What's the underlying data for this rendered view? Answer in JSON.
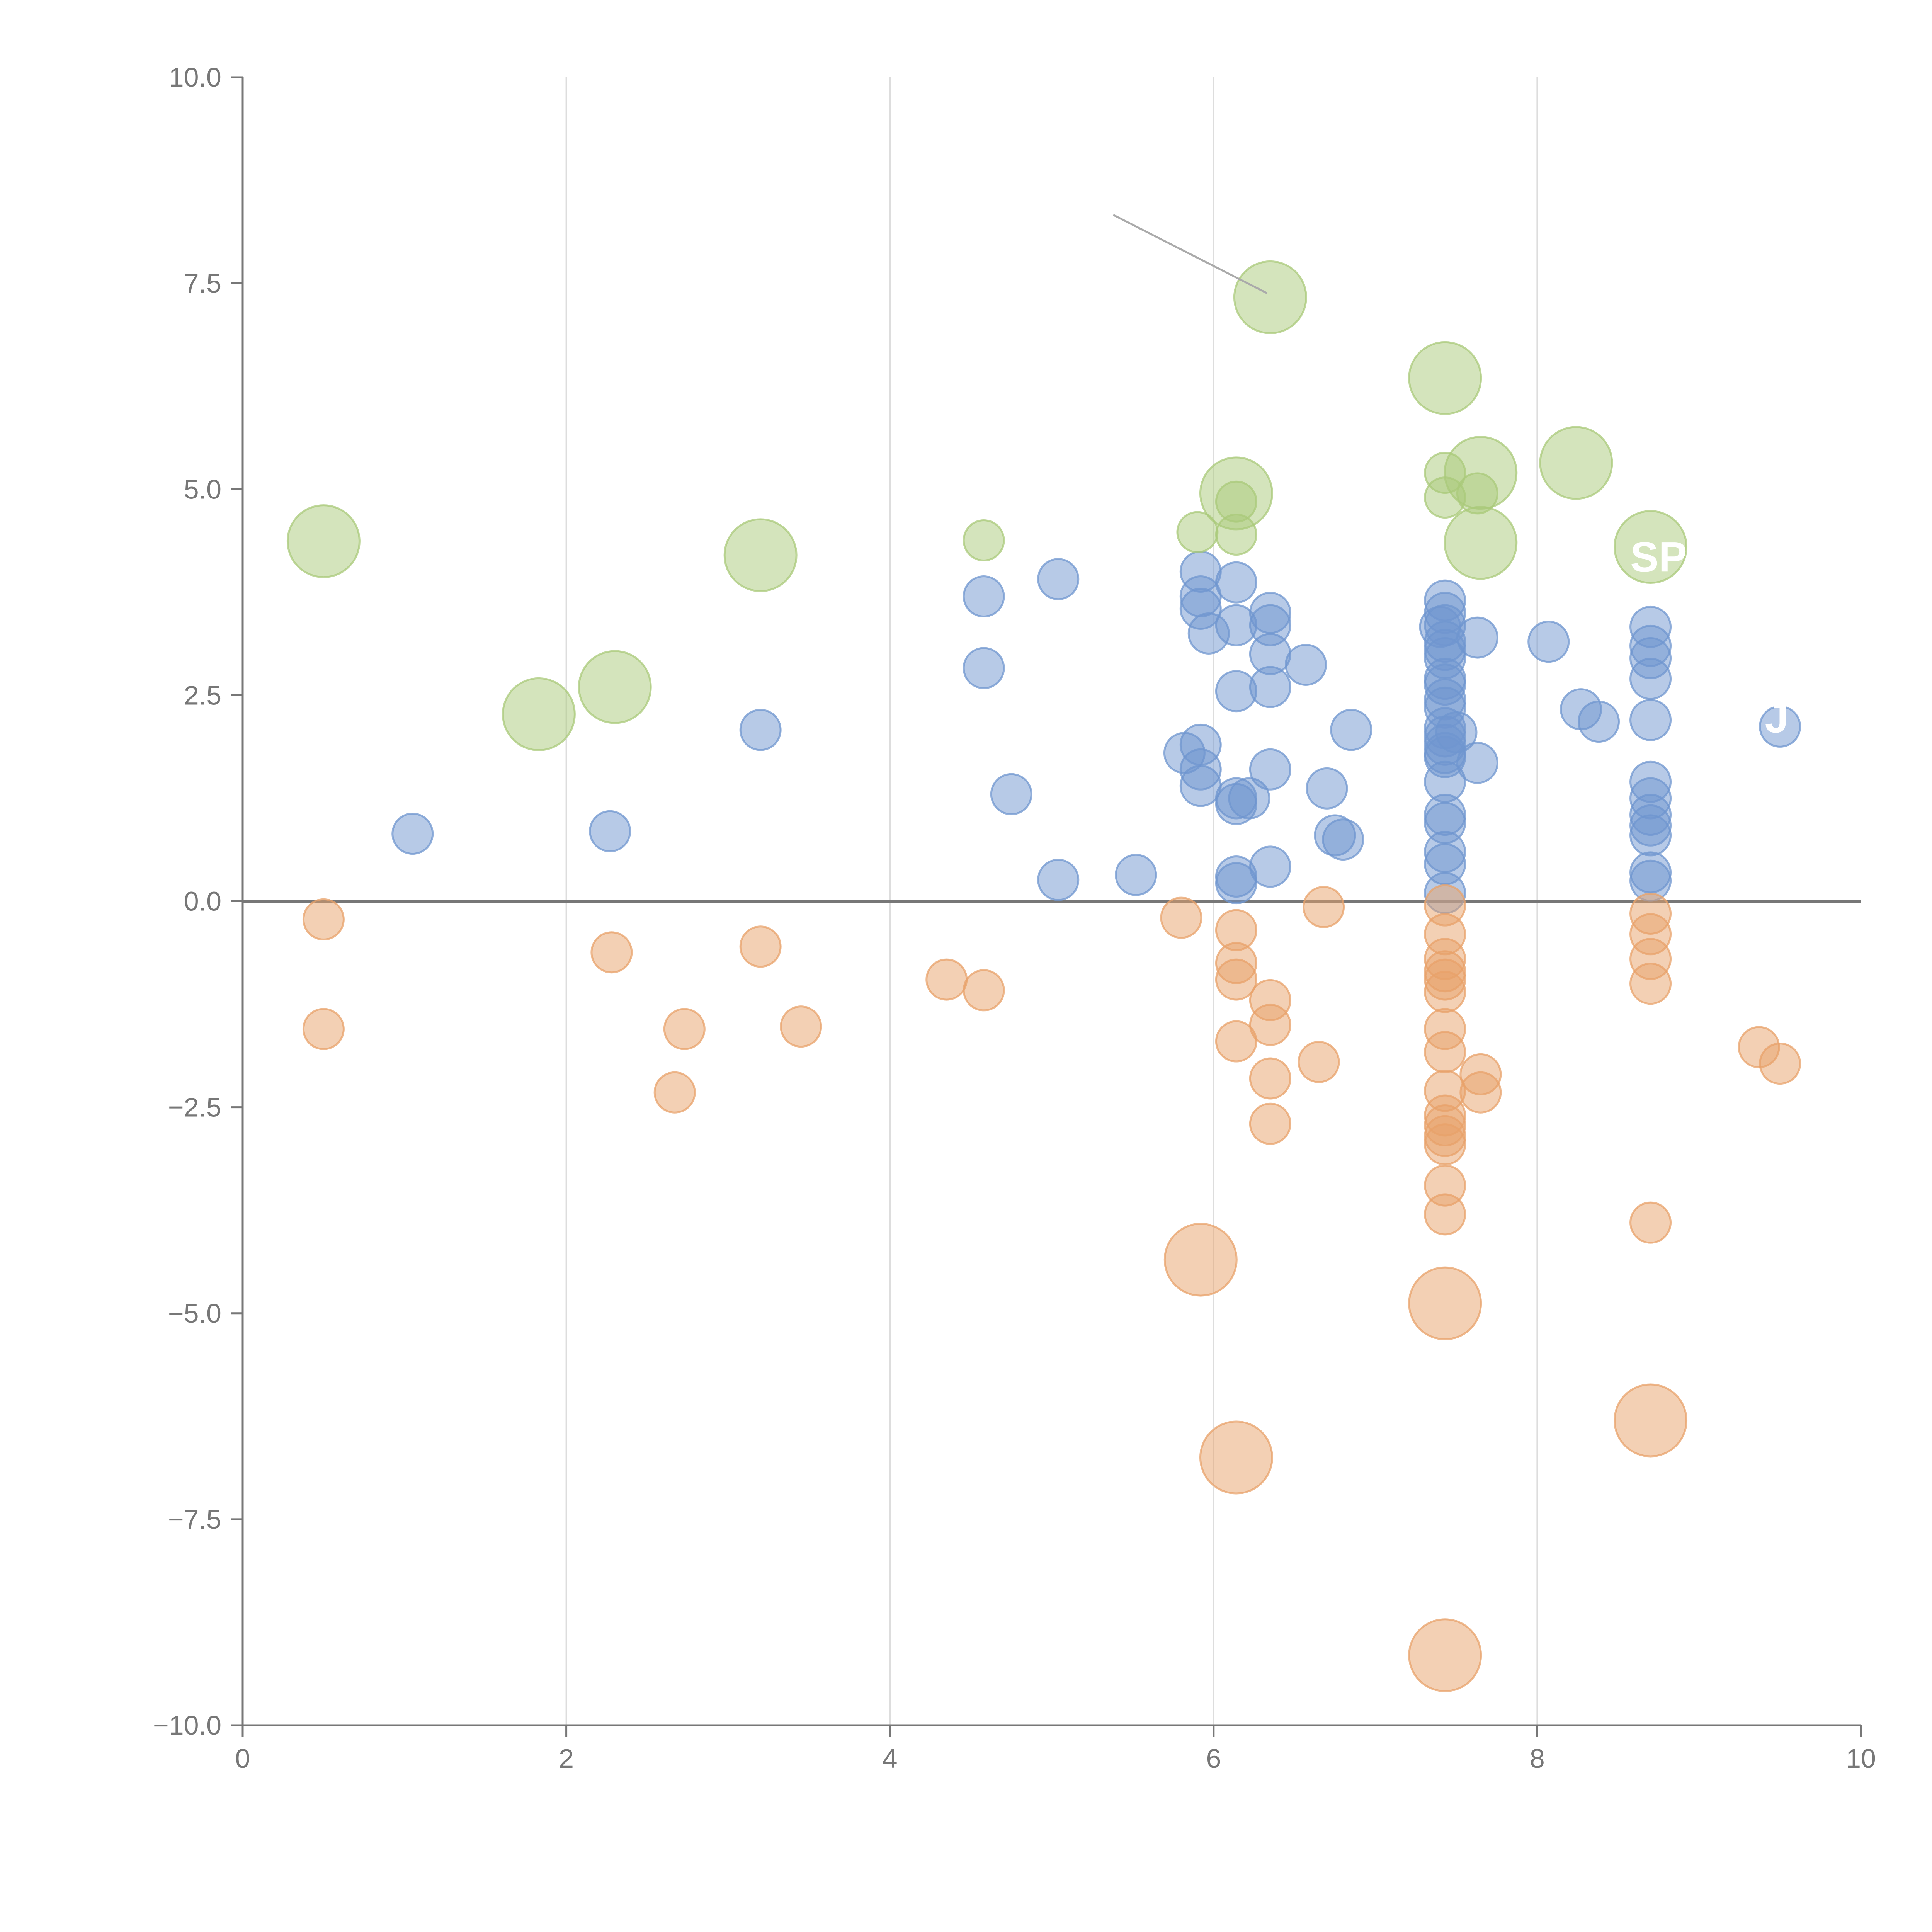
{
  "chart_data": {
    "type": "scatter",
    "title": "",
    "xlabel": "",
    "ylabel": "",
    "xlim": [
      0,
      10
    ],
    "ylim": [
      -10,
      10
    ],
    "grid": "vertical",
    "x_ticks": [
      0,
      2,
      4,
      6,
      8,
      10
    ],
    "x_tick_labels": [
      "0",
      "2",
      "4",
      "6",
      "8",
      "10"
    ],
    "y_ticks": [
      10,
      7.5,
      5,
      2.5,
      0,
      -2.5,
      -5,
      -7.5,
      -10
    ],
    "y_tick_labels": [
      "10.0",
      "7.5",
      "5.0",
      "2.5",
      "0.0",
      "−2.5",
      "−5.0",
      "−7.5",
      "−10.0"
    ],
    "zero_line": 0,
    "colors": {
      "positive": "#6f95cf",
      "negative": "#e8a26a",
      "highlight": "#a9c97a",
      "axis": "#777777",
      "grid": "#dddddd",
      "zero_line": "#777777"
    },
    "series": [
      {
        "name": "positive",
        "color": "#6f95cf",
        "size": "small",
        "points": [
          [
            1.05,
            0.82
          ],
          [
            2.27,
            0.85
          ],
          [
            3.2,
            2.08
          ],
          [
            4.58,
            3.7
          ],
          [
            4.58,
            2.83
          ],
          [
            4.75,
            1.3
          ],
          [
            5.04,
            3.91
          ],
          [
            5.04,
            0.26
          ],
          [
            5.52,
            0.32
          ],
          [
            5.82,
            1.8
          ],
          [
            5.92,
            4.0
          ],
          [
            5.92,
            3.7
          ],
          [
            5.92,
            3.55
          ],
          [
            5.92,
            1.9
          ],
          [
            5.92,
            1.6
          ],
          [
            5.92,
            1.4
          ],
          [
            5.97,
            3.25
          ],
          [
            6.14,
            3.87
          ],
          [
            6.14,
            3.35
          ],
          [
            6.14,
            2.55
          ],
          [
            6.14,
            1.25
          ],
          [
            6.14,
            1.18
          ],
          [
            6.14,
            0.3
          ],
          [
            6.14,
            0.22
          ],
          [
            6.22,
            1.25
          ],
          [
            6.35,
            3.5
          ],
          [
            6.35,
            3.35
          ],
          [
            6.35,
            3.0
          ],
          [
            6.35,
            2.6
          ],
          [
            6.35,
            1.6
          ],
          [
            6.35,
            0.42
          ],
          [
            6.57,
            2.87
          ],
          [
            6.7,
            1.37
          ],
          [
            6.75,
            0.8
          ],
          [
            6.8,
            0.75
          ],
          [
            6.85,
            2.08
          ],
          [
            7.4,
            3.33
          ],
          [
            7.43,
            3.65
          ],
          [
            7.43,
            3.5
          ],
          [
            7.43,
            3.35
          ],
          [
            7.43,
            3.15
          ],
          [
            7.43,
            3.05
          ],
          [
            7.43,
            2.95
          ],
          [
            7.43,
            2.7
          ],
          [
            7.43,
            2.63
          ],
          [
            7.43,
            2.45
          ],
          [
            7.43,
            2.35
          ],
          [
            7.43,
            2.1
          ],
          [
            7.43,
            2.0
          ],
          [
            7.43,
            1.9
          ],
          [
            7.43,
            1.8
          ],
          [
            7.43,
            1.75
          ],
          [
            7.43,
            1.45
          ],
          [
            7.43,
            1.05
          ],
          [
            7.43,
            0.95
          ],
          [
            7.43,
            0.6
          ],
          [
            7.43,
            0.45
          ],
          [
            7.43,
            0.1
          ],
          [
            7.5,
            2.05
          ],
          [
            7.63,
            3.2
          ],
          [
            7.63,
            1.68
          ],
          [
            8.07,
            3.15
          ],
          [
            8.27,
            2.33
          ],
          [
            8.38,
            2.18
          ],
          [
            8.7,
            3.33
          ],
          [
            8.7,
            3.1
          ],
          [
            8.7,
            2.95
          ],
          [
            8.7,
            2.7
          ],
          [
            8.7,
            2.2
          ],
          [
            8.7,
            1.45
          ],
          [
            8.7,
            1.25
          ],
          [
            8.7,
            1.05
          ],
          [
            8.7,
            0.92
          ],
          [
            8.7,
            0.8
          ],
          [
            8.7,
            0.35
          ],
          [
            8.7,
            0.25
          ],
          [
            9.5,
            2.12
          ]
        ]
      },
      {
        "name": "negative",
        "color": "#e8a26a",
        "size": "small",
        "points": [
          [
            0.5,
            -0.22
          ],
          [
            0.5,
            -1.55
          ],
          [
            2.28,
            -0.62
          ],
          [
            2.67,
            -2.32
          ],
          [
            2.73,
            -1.55
          ],
          [
            3.2,
            -0.55
          ],
          [
            3.45,
            -1.52
          ],
          [
            4.35,
            -0.95
          ],
          [
            4.58,
            -1.08
          ],
          [
            5.8,
            -0.2
          ],
          [
            6.14,
            -0.35
          ],
          [
            6.14,
            -0.75
          ],
          [
            6.14,
            -0.95
          ],
          [
            6.14,
            -1.7
          ],
          [
            6.35,
            -1.2
          ],
          [
            6.35,
            -1.5
          ],
          [
            6.35,
            -2.15
          ],
          [
            6.35,
            -2.7
          ],
          [
            6.65,
            -1.95
          ],
          [
            6.68,
            -0.07
          ],
          [
            7.43,
            -0.05
          ],
          [
            7.43,
            -0.4
          ],
          [
            7.43,
            -0.7
          ],
          [
            7.43,
            -0.85
          ],
          [
            7.43,
            -0.95
          ],
          [
            7.43,
            -1.1
          ],
          [
            7.43,
            -1.55
          ],
          [
            7.43,
            -1.83
          ],
          [
            7.43,
            -2.3
          ],
          [
            7.43,
            -2.6
          ],
          [
            7.43,
            -2.72
          ],
          [
            7.43,
            -2.85
          ],
          [
            7.43,
            -2.95
          ],
          [
            7.43,
            -3.45
          ],
          [
            7.43,
            -3.8
          ],
          [
            7.65,
            -2.1
          ],
          [
            7.65,
            -2.32
          ],
          [
            8.7,
            -0.15
          ],
          [
            8.7,
            -0.4
          ],
          [
            8.7,
            -0.7
          ],
          [
            8.7,
            -1.0
          ],
          [
            8.7,
            -3.9
          ],
          [
            9.37,
            -1.77
          ],
          [
            9.5,
            -1.97
          ]
        ]
      },
      {
        "name": "positive-highlight",
        "color": "#a9c97a",
        "size": "small",
        "points": [
          [
            4.58,
            4.38
          ],
          [
            5.9,
            4.48
          ],
          [
            6.14,
            4.85
          ],
          [
            6.14,
            4.45
          ],
          [
            7.43,
            5.2
          ],
          [
            7.43,
            4.9
          ],
          [
            7.63,
            4.95
          ]
        ]
      },
      {
        "name": "positive-highlight-large",
        "color": "#a9c97a",
        "size": "large",
        "points": [
          [
            0.5,
            4.37
          ],
          [
            1.83,
            2.27
          ],
          [
            2.3,
            2.6
          ],
          [
            3.2,
            4.2
          ],
          [
            6.14,
            4.95
          ],
          [
            6.35,
            7.33
          ],
          [
            7.43,
            6.35
          ],
          [
            7.65,
            5.2
          ],
          [
            7.65,
            4.35
          ],
          [
            8.24,
            5.32
          ],
          [
            8.7,
            4.3
          ]
        ]
      },
      {
        "name": "negative-large",
        "color": "#e8a26a",
        "size": "large",
        "points": [
          [
            5.92,
            -4.35
          ],
          [
            6.14,
            -6.75
          ],
          [
            7.43,
            -4.88
          ],
          [
            7.43,
            -9.15
          ],
          [
            8.7,
            -6.3
          ]
        ]
      }
    ],
    "annotations": [
      {
        "text": "SP",
        "x": 8.75,
        "y": 4.0
      },
      {
        "text": "J",
        "x": 9.48,
        "y": 2.05
      }
    ]
  }
}
